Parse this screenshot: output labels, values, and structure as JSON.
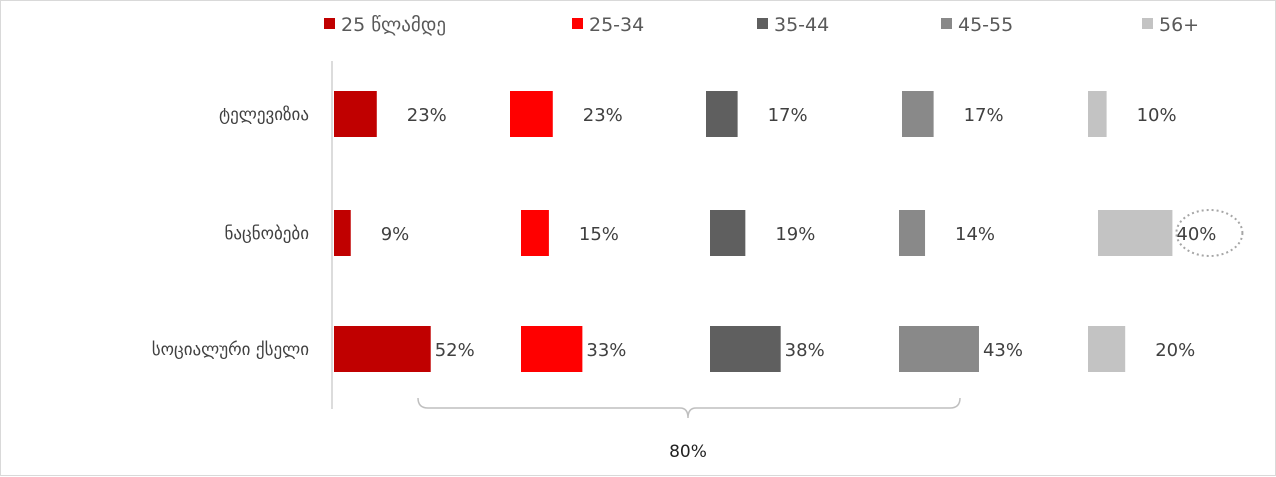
{
  "chart_data": {
    "type": "bar",
    "orientation": "horizontal",
    "layout": "small-multiples",
    "categories": [
      "ტელევიზია",
      "ნაცნობები",
      "სოციალური ქსელი"
    ],
    "series": [
      {
        "name": "25 წლამდე",
        "color": "#c00000",
        "values": [
          23,
          9,
          52
        ],
        "labels": [
          "23%",
          "9%",
          "52%"
        ]
      },
      {
        "name": "25-34",
        "color": "#ff0000",
        "values": [
          23,
          15,
          33
        ],
        "labels": [
          "23%",
          "15%",
          "33%"
        ]
      },
      {
        "name": "35-44",
        "color": "#5f5f5f",
        "values": [
          17,
          19,
          38
        ],
        "labels": [
          "17%",
          "19%",
          "38%"
        ]
      },
      {
        "name": "45-55",
        "color": "#898989",
        "values": [
          17,
          14,
          43
        ],
        "labels": [
          "17%",
          "14%",
          "43%"
        ]
      },
      {
        "name": "56+",
        "color": "#c3c3c3",
        "values": [
          10,
          40,
          20
        ],
        "labels": [
          "10%",
          "40%",
          "20%"
        ]
      }
    ],
    "annotations": [
      {
        "text": "80%",
        "kind": "brace"
      },
      {
        "text": "40%",
        "kind": "dotted-ellipse"
      }
    ],
    "legend_position": "top",
    "grid": false,
    "xlim": [
      0,
      100
    ]
  }
}
